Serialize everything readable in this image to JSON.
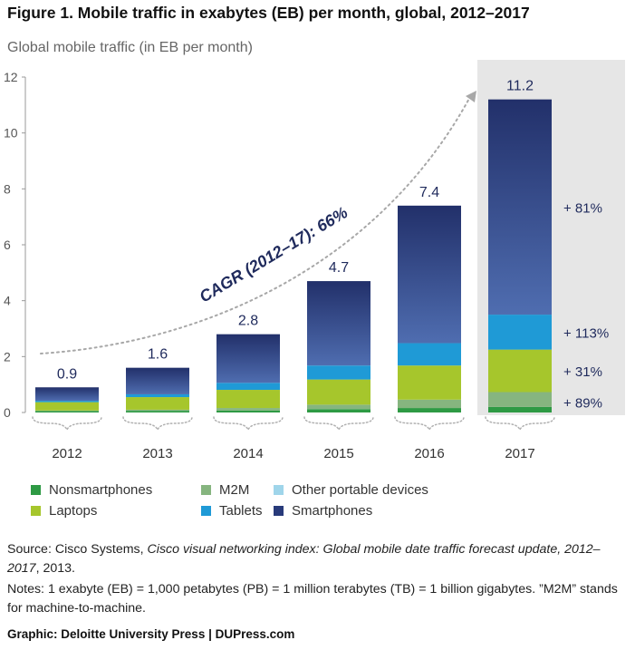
{
  "title": "Figure 1. Mobile traffic in exabytes (EB) per month, global, 2012–2017",
  "subtitle": "Global mobile traffic (in EB per month)",
  "colors": {
    "nonsmartphones": "#2e9a44",
    "m2m": "#86b57f",
    "other_portable": "#9fd5ea",
    "laptops": "#a6c62c",
    "tablets": "#1f9ad6",
    "smartphones": "#283a7a",
    "highlight_bg": "#e6e6e6",
    "total_label": "#1f2a5c",
    "growth_label": "#1f2a5c",
    "cagr": "#1f2a5c",
    "axis_text": "#555555"
  },
  "chart_data": {
    "type": "bar",
    "stacked": true,
    "categories": [
      "2012",
      "2013",
      "2014",
      "2015",
      "2016",
      "2017"
    ],
    "ylim": [
      0,
      12
    ],
    "yticks": [
      "0",
      "2",
      "4",
      "6",
      "8",
      "10",
      "12"
    ],
    "totals": [
      "0.9",
      "1.6",
      "2.8",
      "4.7",
      "7.4",
      "11.2"
    ],
    "series": [
      {
        "name": "Nonsmartphones",
        "key": "nonsmartphones",
        "values": [
          0.05,
          0.06,
          0.07,
          0.12,
          0.16,
          0.2
        ]
      },
      {
        "name": "M2M",
        "key": "m2m",
        "values": [
          0.02,
          0.04,
          0.09,
          0.16,
          0.3,
          0.53
        ]
      },
      {
        "name": "Other portable devices",
        "key": "other_portable",
        "values": [
          0.0,
          0.0,
          0.0,
          0.0,
          0.0,
          0.0
        ]
      },
      {
        "name": "Laptops",
        "key": "laptops",
        "values": [
          0.3,
          0.45,
          0.65,
          0.9,
          1.22,
          1.52
        ]
      },
      {
        "name": "Tablets",
        "key": "tablets",
        "values": [
          0.05,
          0.1,
          0.25,
          0.5,
          0.8,
          1.25
        ]
      },
      {
        "name": "Smartphones",
        "key": "smartphones",
        "values": [
          0.48,
          0.95,
          1.74,
          3.02,
          4.92,
          7.7
        ]
      }
    ],
    "highlight_category": "2017",
    "growth_labels": [
      "+ 81%",
      "+ 113%",
      "+ 31%",
      "+ 89%"
    ],
    "annotation": "CAGR (2012–17): 66%"
  },
  "legend": [
    {
      "label": "Nonsmartphones",
      "key": "nonsmartphones"
    },
    {
      "label": "M2M",
      "key": "m2m"
    },
    {
      "label": "Other portable devices",
      "key": "other_portable"
    },
    {
      "label": "Laptops",
      "key": "laptops"
    },
    {
      "label": "Tablets",
      "key": "tablets"
    },
    {
      "label": "Smartphones",
      "key": "smartphones"
    }
  ],
  "source": {
    "prefix": "Source: Cisco Systems, ",
    "italic": "Cisco visual networking index: Global mobile date traffic forecast update, 2012–2017",
    "suffix": ", 2013."
  },
  "notes": "Notes: 1 exabyte (EB) = 1,000 petabytes (PB) = 1 million terabytes (TB) = 1 billion gigabytes. ”M2M” stands for machine-to-machine.",
  "credit": "Graphic: Deloitte University Press  |  DUPress.com"
}
